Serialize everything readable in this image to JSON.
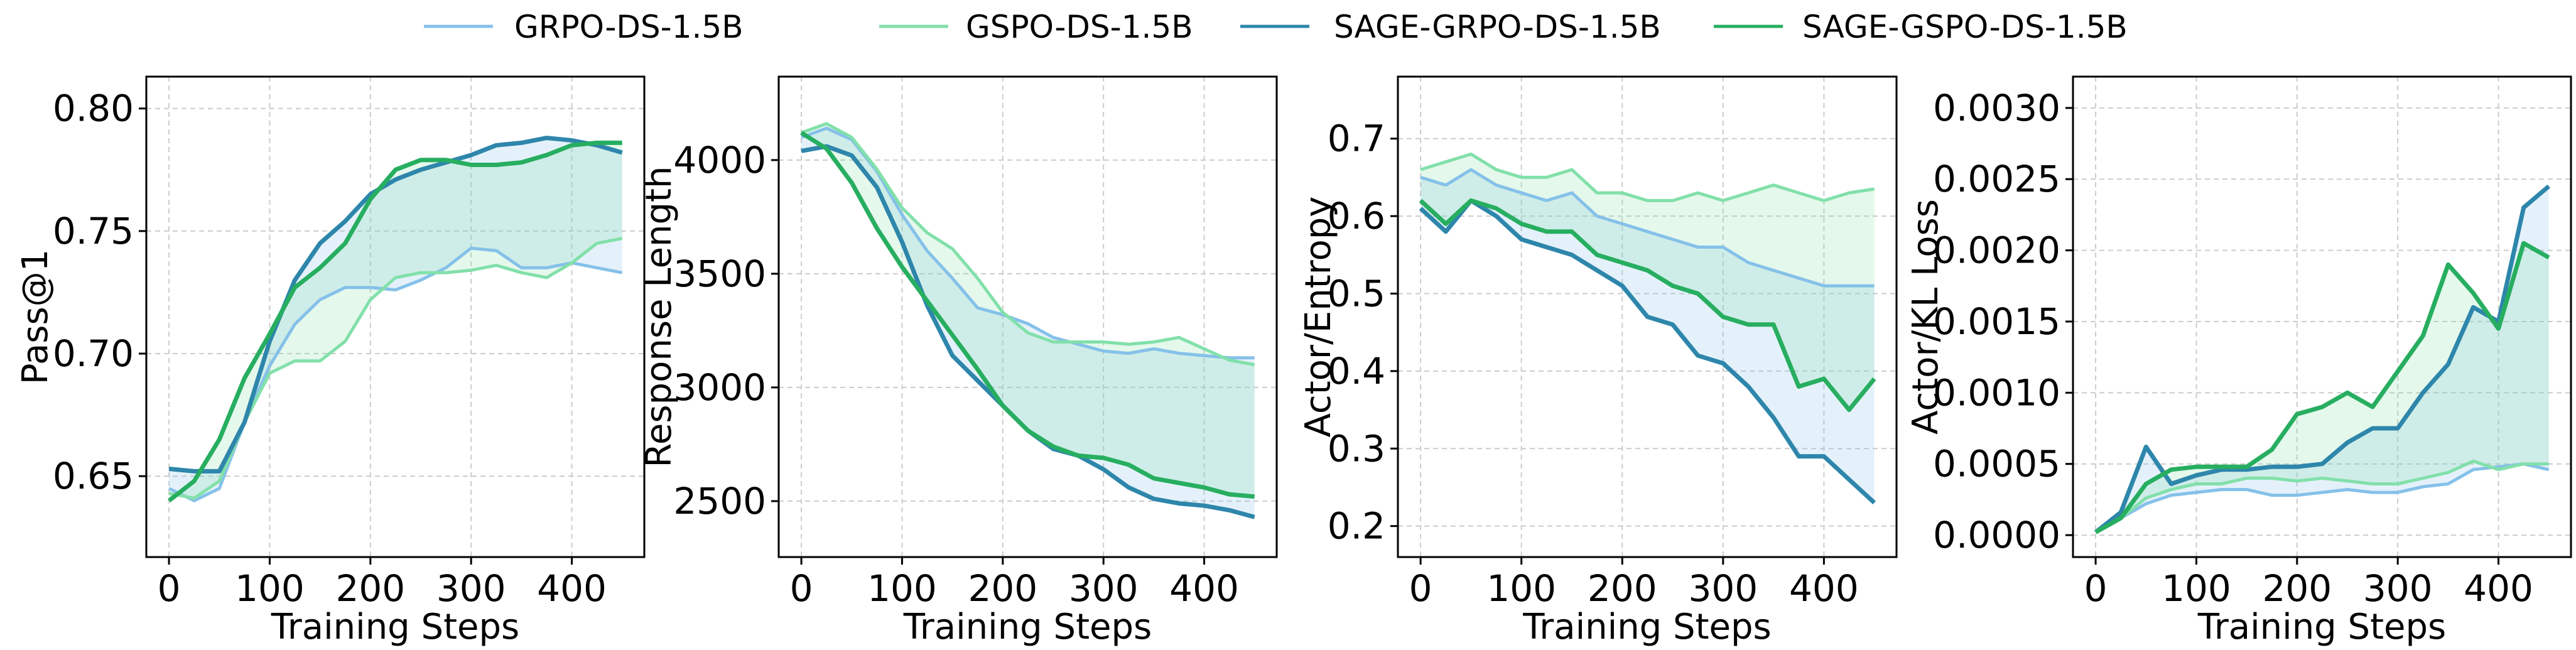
{
  "legend": {
    "placement": "top-center",
    "entries": [
      {
        "name": "GRPO-DS-1.5B",
        "color": "#85C1E9"
      },
      {
        "name": "GSPO-DS-1.5B",
        "color": "#82E0AA"
      },
      {
        "name": "SAGE-GRPO-DS-1.5B",
        "color": "#2E86AB"
      },
      {
        "name": "SAGE-GSPO-DS-1.5B",
        "color": "#27AE60"
      }
    ]
  },
  "chart_data": [
    {
      "type": "line",
      "xlabel": "Training Steps",
      "ylabel": "Pass@1",
      "xlim": [
        -22.5,
        472
      ],
      "ylim": [
        0.617,
        0.813
      ],
      "grid": true,
      "xticks": [
        0,
        100,
        200,
        300,
        400
      ],
      "xtick_labels": [
        "0",
        "100",
        "200",
        "300",
        "400"
      ],
      "yticks": [
        0.65,
        0.7,
        0.75,
        0.8
      ],
      "ytick_labels": [
        "0.65",
        "0.70",
        "0.75",
        "0.80"
      ],
      "x": [
        0,
        25,
        50,
        75,
        100,
        125,
        150,
        175,
        200,
        225,
        250,
        275,
        300,
        325,
        350,
        375,
        400,
        425,
        450
      ],
      "series": [
        {
          "name": "GRPO-DS-1.5B",
          "values": [
            0.645,
            0.64,
            0.645,
            0.672,
            0.695,
            0.712,
            0.722,
            0.727,
            0.727,
            0.726,
            0.73,
            0.735,
            0.743,
            0.742,
            0.735,
            0.735,
            0.737,
            0.735,
            0.733
          ]
        },
        {
          "name": "GSPO-DS-1.5B",
          "values": [
            0.643,
            0.641,
            0.648,
            0.672,
            0.692,
            0.697,
            0.697,
            0.705,
            0.722,
            0.731,
            0.733,
            0.733,
            0.734,
            0.736,
            0.733,
            0.731,
            0.737,
            0.745,
            0.747
          ]
        },
        {
          "name": "SAGE-GRPO-DS-1.5B",
          "values": [
            0.653,
            0.652,
            0.652,
            0.672,
            0.705,
            0.73,
            0.745,
            0.754,
            0.765,
            0.771,
            0.775,
            0.778,
            0.781,
            0.785,
            0.786,
            0.788,
            0.787,
            0.785,
            0.782
          ]
        },
        {
          "name": "SAGE-GSPO-DS-1.5B",
          "values": [
            0.64,
            0.648,
            0.665,
            0.69,
            0.708,
            0.727,
            0.735,
            0.745,
            0.763,
            0.775,
            0.779,
            0.779,
            0.777,
            0.777,
            0.778,
            0.781,
            0.785,
            0.786,
            0.786
          ]
        }
      ]
    },
    {
      "type": "line",
      "xlabel": "Training Steps",
      "ylabel": "Response Length",
      "xlim": [
        -22.5,
        472
      ],
      "ylim": [
        2254,
        4367
      ],
      "grid": true,
      "xticks": [
        0,
        100,
        200,
        300,
        400
      ],
      "xtick_labels": [
        "0",
        "100",
        "200",
        "300",
        "400"
      ],
      "yticks": [
        2500,
        3000,
        3500,
        4000
      ],
      "ytick_labels": [
        "2500",
        "3000",
        "3500",
        "4000"
      ],
      "x": [
        0,
        25,
        50,
        75,
        100,
        125,
        150,
        175,
        200,
        225,
        250,
        275,
        300,
        325,
        350,
        375,
        400,
        425,
        450
      ],
      "series": [
        {
          "name": "GRPO-DS-1.5B",
          "values": [
            4100,
            4140,
            4090,
            3950,
            3760,
            3600,
            3480,
            3350,
            3320,
            3280,
            3220,
            3190,
            3160,
            3150,
            3170,
            3150,
            3140,
            3130,
            3130
          ]
        },
        {
          "name": "GSPO-DS-1.5B",
          "values": [
            4120,
            4160,
            4100,
            3960,
            3790,
            3680,
            3610,
            3480,
            3330,
            3240,
            3200,
            3200,
            3200,
            3190,
            3200,
            3220,
            3170,
            3120,
            3100
          ]
        },
        {
          "name": "SAGE-GRPO-DS-1.5B",
          "values": [
            4040,
            4060,
            4020,
            3880,
            3640,
            3360,
            3140,
            3030,
            2920,
            2810,
            2730,
            2700,
            2640,
            2560,
            2510,
            2490,
            2480,
            2460,
            2430
          ]
        },
        {
          "name": "SAGE-GSPO-DS-1.5B",
          "values": [
            4120,
            4050,
            3900,
            3700,
            3530,
            3380,
            3230,
            3080,
            2920,
            2810,
            2740,
            2700,
            2690,
            2660,
            2600,
            2580,
            2560,
            2530,
            2520
          ]
        }
      ]
    },
    {
      "type": "line",
      "xlabel": "Training Steps",
      "ylabel": "Actor/Entropy",
      "xlim": [
        -22.5,
        472
      ],
      "ylim": [
        0.16,
        0.78
      ],
      "grid": true,
      "xticks": [
        0,
        100,
        200,
        300,
        400
      ],
      "xtick_labels": [
        "0",
        "100",
        "200",
        "300",
        "400"
      ],
      "yticks": [
        0.2,
        0.3,
        0.4,
        0.5,
        0.6,
        0.7
      ],
      "ytick_labels": [
        "0.2",
        "0.3",
        "0.4",
        "0.5",
        "0.6",
        "0.7"
      ],
      "x": [
        0,
        25,
        50,
        75,
        100,
        125,
        150,
        175,
        200,
        225,
        250,
        275,
        300,
        325,
        350,
        375,
        400,
        425,
        450
      ],
      "series": [
        {
          "name": "GRPO-DS-1.5B",
          "values": [
            0.65,
            0.64,
            0.66,
            0.64,
            0.63,
            0.62,
            0.63,
            0.6,
            0.59,
            0.58,
            0.57,
            0.56,
            0.56,
            0.54,
            0.53,
            0.52,
            0.51,
            0.51,
            0.51
          ]
        },
        {
          "name": "GSPO-DS-1.5B",
          "values": [
            0.66,
            0.67,
            0.68,
            0.66,
            0.65,
            0.65,
            0.66,
            0.63,
            0.63,
            0.62,
            0.62,
            0.63,
            0.62,
            0.63,
            0.64,
            0.63,
            0.62,
            0.63,
            0.635
          ]
        },
        {
          "name": "SAGE-GRPO-DS-1.5B",
          "values": [
            0.61,
            0.58,
            0.62,
            0.6,
            0.57,
            0.56,
            0.55,
            0.53,
            0.51,
            0.47,
            0.46,
            0.42,
            0.41,
            0.38,
            0.34,
            0.29,
            0.29,
            0.26,
            0.23
          ]
        },
        {
          "name": "SAGE-GSPO-DS-1.5B",
          "values": [
            0.62,
            0.59,
            0.62,
            0.61,
            0.59,
            0.58,
            0.58,
            0.55,
            0.54,
            0.53,
            0.51,
            0.5,
            0.47,
            0.46,
            0.46,
            0.38,
            0.39,
            0.35,
            0.39
          ]
        }
      ]
    },
    {
      "type": "line",
      "xlabel": "Training Steps",
      "ylabel": "Actor/KL Loss",
      "xlim": [
        -22.5,
        472
      ],
      "ylim": [
        -0.000154,
        0.00322
      ],
      "grid": true,
      "xticks": [
        0,
        100,
        200,
        300,
        400
      ],
      "xtick_labels": [
        "0",
        "100",
        "200",
        "300",
        "400"
      ],
      "yticks": [
        0.0,
        0.0005,
        0.001,
        0.0015,
        0.002,
        0.0025,
        0.003
      ],
      "ytick_labels": [
        "0.0000",
        "0.0005",
        "0.0010",
        "0.0015",
        "0.0020",
        "0.0025",
        "0.0030"
      ],
      "x": [
        0,
        25,
        50,
        75,
        100,
        125,
        150,
        175,
        200,
        225,
        250,
        275,
        300,
        325,
        350,
        375,
        400,
        425,
        450
      ],
      "series": [
        {
          "name": "GRPO-DS-1.5B",
          "values": [
            2e-05,
            0.00012,
            0.00022,
            0.00028,
            0.0003,
            0.00032,
            0.00032,
            0.00028,
            0.00028,
            0.0003,
            0.00032,
            0.0003,
            0.0003,
            0.00034,
            0.00036,
            0.00046,
            0.00048,
            0.0005,
            0.00046
          ]
        },
        {
          "name": "GSPO-DS-1.5B",
          "values": [
            2e-05,
            0.00012,
            0.00026,
            0.00032,
            0.00036,
            0.00036,
            0.0004,
            0.0004,
            0.00038,
            0.0004,
            0.00038,
            0.00036,
            0.00036,
            0.0004,
            0.00044,
            0.00052,
            0.00046,
            0.0005,
            0.0005
          ]
        },
        {
          "name": "SAGE-GRPO-DS-1.5B",
          "values": [
            2e-05,
            0.00016,
            0.00062,
            0.00036,
            0.00042,
            0.00046,
            0.00046,
            0.00048,
            0.00048,
            0.0005,
            0.00065,
            0.00075,
            0.00075,
            0.001,
            0.0012,
            0.0016,
            0.0015,
            0.0023,
            0.00245
          ]
        },
        {
          "name": "SAGE-GSPO-DS-1.5B",
          "values": [
            2e-05,
            0.00012,
            0.00036,
            0.00046,
            0.00048,
            0.00048,
            0.00048,
            0.0006,
            0.00085,
            0.0009,
            0.001,
            0.0009,
            0.00115,
            0.0014,
            0.0019,
            0.0017,
            0.00145,
            0.00205,
            0.00195
          ]
        }
      ]
    }
  ]
}
